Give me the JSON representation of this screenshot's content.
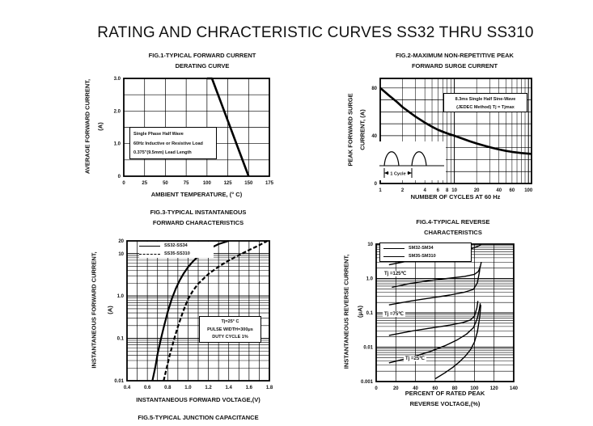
{
  "page": {
    "title": "RATING AND CHRACTERISTIC CURVES SS32 THRU SS310",
    "fig5_title": "FIG.5-TYPICAL JUNCTION CAPACITANCE",
    "background": "#ffffff",
    "ink_color": "#111111"
  },
  "chart_data": [
    {
      "type": "line",
      "title_lines": [
        "FIG.1-TYPICAL FORWARD CURRENT",
        "DERATING CURVE"
      ],
      "xlabel": "AMBIENT TEMPERATURE, (° C)",
      "ylabel_lines": [
        "AVERAGE FORWARD CURRENT,",
        "(A)"
      ],
      "x": {
        "scale": "linear",
        "min": 0,
        "max": 175,
        "grid_step": 25,
        "ticks": [
          0,
          25,
          50,
          75,
          100,
          125,
          150,
          175
        ],
        "tick_labels": [
          "0",
          "25",
          "50",
          "75",
          "100",
          "125",
          "150",
          "175"
        ]
      },
      "y": {
        "scale": "linear",
        "min": 0,
        "max": 3,
        "grid_step": 0.5,
        "ticks": [
          0,
          1,
          2,
          3
        ],
        "tick_labels": [
          "0",
          "1.0",
          "2.0",
          "3.0"
        ]
      },
      "series": [
        {
          "name": "forward-current-derating",
          "style": "solid",
          "width": 2.6,
          "points": [
            [
              100,
              3
            ],
            [
              106,
              3
            ],
            [
              150,
              0
            ]
          ]
        }
      ],
      "annotation": {
        "lines": [
          "Single Phase Half Wave",
          "60Hz  Inductive or  Resistive Load",
          "0.375\"(9.5mm) Lead Length"
        ]
      }
    },
    {
      "type": "line",
      "title_lines": [
        "FIG.2-MAXIMUM NON-REPETITIVE PEAK",
        "FORWARD SURGE CURRENT"
      ],
      "xlabel": "NUMBER OF CYCLES AT 60 Hz",
      "ylabel_lines": [
        "PEAK FORWARD SURGE",
        "CURRENT, (A)"
      ],
      "x": {
        "scale": "log",
        "min": 1,
        "max": 110,
        "ticks": [
          1,
          2,
          4,
          6,
          8,
          10,
          20,
          40,
          60,
          100
        ],
        "tick_labels": [
          "1",
          "2",
          "4",
          "6",
          "8",
          "10",
          "20",
          "40",
          "60",
          "100"
        ]
      },
      "y": {
        "scale": "linear",
        "min": 0,
        "max": 88,
        "grid_step": 10,
        "grid_max": 80,
        "ticks": [
          0,
          40,
          80
        ],
        "tick_labels": [
          "0",
          "40",
          "80"
        ]
      },
      "series": [
        {
          "name": "peak-surge-current",
          "style": "solid",
          "width": 2.6,
          "points": [
            [
              1,
              80
            ],
            [
              1.3,
              74
            ],
            [
              1.7,
              68
            ],
            [
              2,
              64
            ],
            [
              2.5,
              59.5
            ],
            [
              3,
              56
            ],
            [
              4,
              51
            ],
            [
              5,
              47.5
            ],
            [
              6,
              45
            ],
            [
              7,
              43.3
            ],
            [
              8,
              42
            ],
            [
              10,
              40
            ],
            [
              13,
              37.5
            ],
            [
              16,
              35.5
            ],
            [
              20,
              33.5
            ],
            [
              26,
              31.5
            ],
            [
              32,
              30
            ],
            [
              40,
              28.5
            ],
            [
              50,
              27.3
            ],
            [
              60,
              26.5
            ],
            [
              80,
              25.5
            ],
            [
              100,
              25
            ],
            [
              110,
              24.8
            ]
          ]
        }
      ],
      "annotation": {
        "lines": [
          "8.3ms Single Half Sine-Wave",
          "(JEDEC Method) Tj = Tjmax"
        ]
      },
      "inset_label": "1 Cycle"
    },
    {
      "type": "line",
      "title_lines": [
        "FIG.3-TYPICAL INSTANTANEOUS",
        "FORWARD CHARACTERISTICS"
      ],
      "xlabel": "INSTANTANEOUS FORWARD VOLTAGE,(V)",
      "ylabel_lines": [
        "INSTANTANEOUS FORWARD CURRENT,",
        "(A)"
      ],
      "x": {
        "scale": "linear",
        "min": 0.4,
        "max": 1.8,
        "grid_step": 0.1,
        "ticks": [
          0.4,
          0.6,
          0.8,
          1.0,
          1.2,
          1.4,
          1.6,
          1.8
        ],
        "tick_labels": [
          "0.4",
          "0.6",
          "0.8",
          "1.0",
          "1.2",
          "1.4",
          "1.6",
          "1.8"
        ]
      },
      "y": {
        "scale": "log",
        "min": 0.01,
        "max": 20,
        "ticks": [
          0.01,
          0.1,
          1,
          10,
          20
        ],
        "tick_labels": [
          "0.01",
          "0.1",
          "1.0",
          "10",
          "20"
        ]
      },
      "series": [
        {
          "name": "SS32-SS34",
          "style": "solid",
          "width": 2.2,
          "points": [
            [
              0.65,
              0.01
            ],
            [
              0.68,
              0.022
            ],
            [
              0.7,
              0.042
            ],
            [
              0.73,
              0.09
            ],
            [
              0.76,
              0.18
            ],
            [
              0.8,
              0.42
            ],
            [
              0.84,
              0.85
            ],
            [
              0.88,
              1.5
            ],
            [
              0.92,
              2.4
            ],
            [
              0.96,
              3.5
            ],
            [
              1.0,
              4.8
            ],
            [
              1.05,
              6.6
            ],
            [
              1.1,
              8.6
            ],
            [
              1.15,
              10.6
            ],
            [
              1.2,
              12.8
            ],
            [
              1.3,
              16.8
            ],
            [
              1.4,
              20
            ]
          ]
        },
        {
          "name": "SS35-SS310",
          "style": "dashed",
          "width": 2.2,
          "points": [
            [
              0.76,
              0.01
            ],
            [
              0.79,
              0.02
            ],
            [
              0.82,
              0.04
            ],
            [
              0.86,
              0.09
            ],
            [
              0.9,
              0.19
            ],
            [
              0.95,
              0.42
            ],
            [
              1.0,
              0.85
            ],
            [
              1.05,
              1.35
            ],
            [
              1.1,
              1.95
            ],
            [
              1.2,
              3.3
            ],
            [
              1.3,
              4.9
            ],
            [
              1.4,
              6.9
            ],
            [
              1.5,
              9.2
            ],
            [
              1.6,
              12.2
            ],
            [
              1.7,
              15.8
            ],
            [
              1.78,
              20
            ]
          ]
        }
      ],
      "legend": {
        "items": [
          {
            "label": "SS32-SS34",
            "style": "solid"
          },
          {
            "label": "SS35-SS310",
            "style": "dashed"
          }
        ]
      },
      "annotation": {
        "lines": [
          "Tj=25° C",
          "PULSE WIDTH=300μs",
          "DUTY CYCLE 1%"
        ]
      }
    },
    {
      "type": "line",
      "title_lines": [
        "FIG.4-TYPICAL REVERSE",
        "CHARACTERISTICS"
      ],
      "xlabel_lines": [
        "PERCENT OF RATED PEAK",
        "REVERSE VOLTAGE,(%)"
      ],
      "ylabel_lines": [
        "INSTANTANEOUS REVERSE CURRENT,",
        "(μA)"
      ],
      "x": {
        "scale": "linear",
        "min": 0,
        "max": 140,
        "grid_step": 20,
        "ticks": [
          0,
          20,
          40,
          60,
          80,
          100,
          120,
          140
        ],
        "tick_labels": [
          "0",
          "20",
          "40",
          "60",
          "80",
          "100",
          "120",
          "140"
        ]
      },
      "y": {
        "scale": "log",
        "min": 0.001,
        "max": 10,
        "ticks": [
          0.001,
          0.01,
          0.1,
          1,
          10
        ],
        "tick_labels": [
          "0.001",
          "0.01",
          "0.1",
          "1.0",
          "10"
        ]
      },
      "series": [
        {
          "name": "reverse-125C-upper",
          "style": "solid",
          "width": 1.4,
          "points": [
            [
              13,
              2.5
            ],
            [
              30,
              3.1
            ],
            [
              50,
              4.0
            ],
            [
              70,
              5.2
            ],
            [
              85,
              6.2
            ],
            [
              95,
              7.2
            ],
            [
              101,
              8.0
            ],
            [
              105,
              9.0
            ],
            [
              107,
              10
            ]
          ]
        },
        {
          "name": "reverse-125C-lower",
          "style": "solid",
          "width": 1.4,
          "points": [
            [
              16,
              0.55
            ],
            [
              35,
              0.72
            ],
            [
              55,
              0.88
            ],
            [
              75,
              1.02
            ],
            [
              90,
              1.15
            ],
            [
              100,
              1.32
            ],
            [
              104,
              1.6
            ],
            [
              106,
              2.2
            ],
            [
              107,
              3.0
            ]
          ]
        },
        {
          "name": "reverse-75C-upper",
          "style": "solid",
          "width": 1.4,
          "points": [
            [
              13,
              0.17
            ],
            [
              35,
              0.22
            ],
            [
              55,
              0.27
            ],
            [
              75,
              0.33
            ],
            [
              90,
              0.4
            ],
            [
              99,
              0.48
            ],
            [
              103,
              0.75
            ],
            [
              105,
              1.5
            ],
            [
              105.8,
              2.3
            ]
          ]
        },
        {
          "name": "reverse-75C-lower",
          "style": "solid",
          "width": 1.4,
          "points": [
            [
              13,
              0.022
            ],
            [
              35,
              0.029
            ],
            [
              55,
              0.036
            ],
            [
              75,
              0.044
            ],
            [
              88,
              0.052
            ],
            [
              96,
              0.062
            ],
            [
              100,
              0.08
            ],
            [
              102.5,
              0.14
            ],
            [
              103.5,
              0.22
            ]
          ]
        },
        {
          "name": "reverse-25C-upper",
          "style": "solid",
          "width": 1.4,
          "points": [
            [
              13,
              0.0035
            ],
            [
              35,
              0.005
            ],
            [
              55,
              0.0075
            ],
            [
              70,
              0.011
            ],
            [
              82,
              0.016
            ],
            [
              92,
              0.024
            ],
            [
              99,
              0.037
            ],
            [
              103,
              0.07
            ],
            [
              105,
              0.13
            ],
            [
              106,
              0.19
            ]
          ]
        },
        {
          "name": "reverse-25C-lower",
          "style": "solid",
          "width": 1.4,
          "points": [
            [
              60,
              0.0012
            ],
            [
              70,
              0.0018
            ],
            [
              78,
              0.0026
            ],
            [
              85,
              0.0038
            ],
            [
              91,
              0.0056
            ],
            [
              96,
              0.0085
            ],
            [
              100,
              0.014
            ],
            [
              103,
              0.028
            ],
            [
              105.5,
              0.08
            ],
            [
              106.5,
              0.17
            ]
          ]
        }
      ],
      "legend": {
        "items": [
          {
            "label": "SM32-SM34",
            "style": "solid"
          },
          {
            "label": "SM35-SM310",
            "style": "solid"
          }
        ]
      },
      "labels": [
        {
          "text": "Tj =125℃"
        },
        {
          "text": "Tj =75℃"
        },
        {
          "text": "Tj =25℃"
        }
      ]
    }
  ]
}
